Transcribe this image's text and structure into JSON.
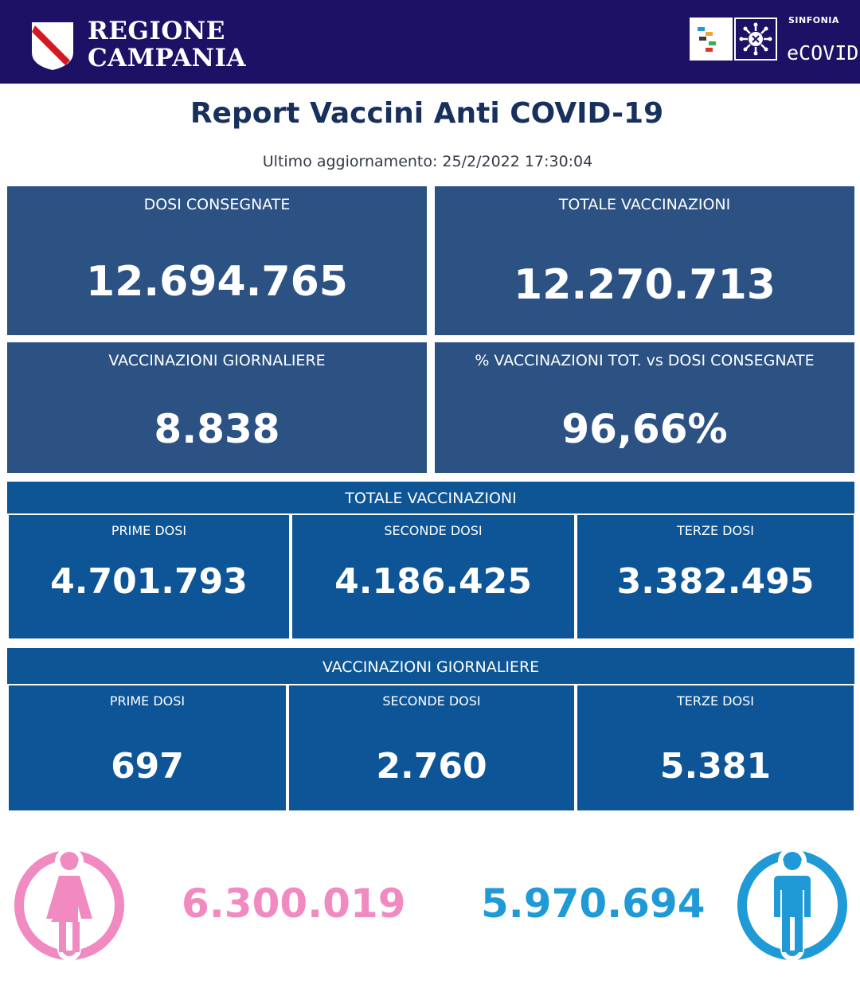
{
  "header": {
    "brand_line1": "REGIONE",
    "brand_line2": "CAMPANIA",
    "sinfonia_small": "SINFONIA",
    "sinfonia_big": "eCOVID"
  },
  "title": "Report Vaccini Anti COVID-19",
  "updated": "Ultimo aggiornamento: 25/2/2022  17:30:04",
  "summary": [
    {
      "label": "DOSI  CONSEGNATE",
      "value": "12.694.765"
    },
    {
      "label": "TOTALE VACCINAZIONI",
      "value": "12.270.713"
    },
    {
      "label": "VACCINAZIONI GIORNALIERE",
      "value": "8.838"
    },
    {
      "label": "% VACCINAZIONI TOT. vs DOSI CONSEGNATE",
      "value": "96,66%"
    }
  ],
  "totale": {
    "header": "TOTALE VACCINAZIONI",
    "cells": [
      {
        "label": "PRIME DOSI",
        "value": "4.701.793"
      },
      {
        "label": "SECONDE DOSI",
        "value": "4.186.425"
      },
      {
        "label": "TERZE DOSI",
        "value": "3.382.495"
      }
    ]
  },
  "giornaliere": {
    "header": "VACCINAZIONI GIORNALIERE",
    "cells": [
      {
        "label": "PRIME DOSI",
        "value": "697"
      },
      {
        "label": "SECONDE DOSI",
        "value": "2.760"
      },
      {
        "label": "TERZE DOSI",
        "value": "5.381"
      }
    ]
  },
  "gender": {
    "female_value": "6.300.019",
    "male_value": "5.970.694",
    "female_color": "#f08ac0",
    "male_color": "#1f9ad6",
    "female_icon": "female-icon",
    "male_icon": "male-icon"
  }
}
